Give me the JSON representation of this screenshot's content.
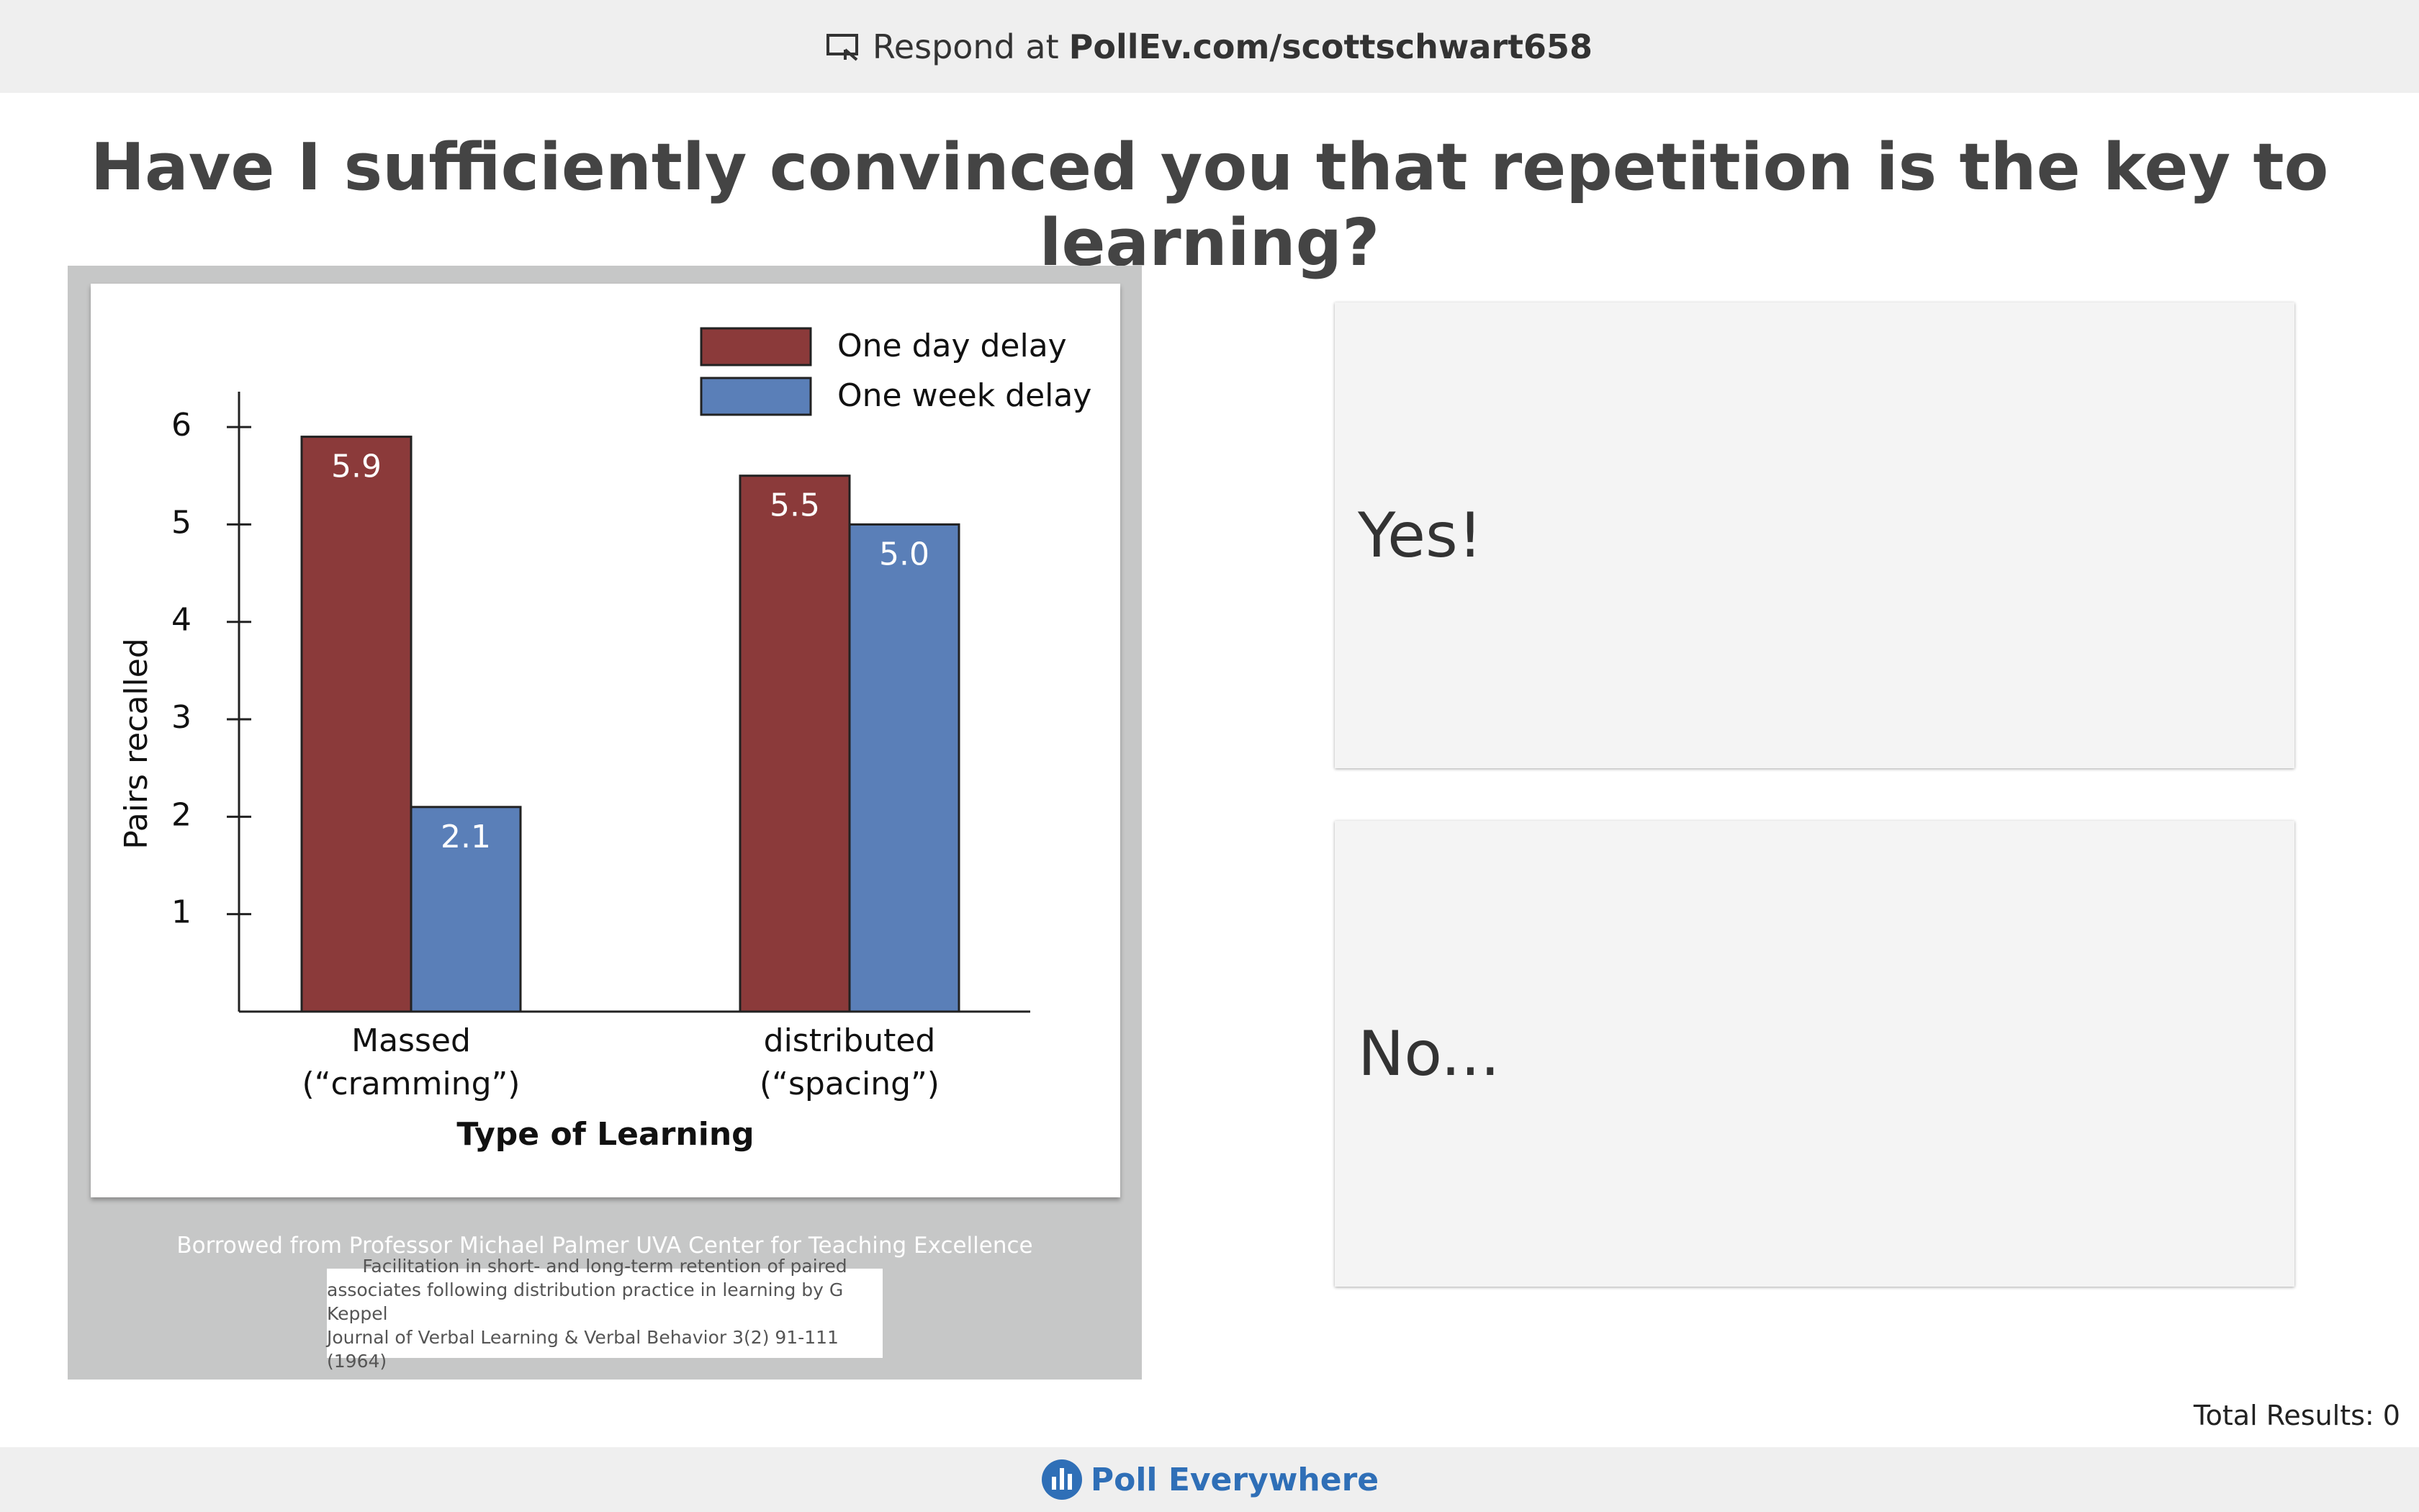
{
  "header": {
    "prefix": "Respond at",
    "url": "PollEv.com/scottschwart658"
  },
  "question": "Have I sufficiently convinced you that repetition is the key to learning?",
  "chart_data": {
    "type": "bar",
    "categories": [
      "Massed\n(“cramming”)",
      "distributed\n(“spacing”)"
    ],
    "series": [
      {
        "name": "One day delay",
        "color": "#8b3a3a",
        "values": [
          5.9,
          5.5
        ]
      },
      {
        "name": "One week delay",
        "color": "#5a7fb8",
        "values": [
          2.1,
          5.0
        ],
        "value_labels": [
          "2.1",
          "5.0"
        ]
      }
    ],
    "ylabel": "Pairs recalled",
    "xlabel": "Type of Learning",
    "ylim": [
      0,
      6.2
    ],
    "yticks": [
      1,
      2,
      3,
      4,
      5,
      6
    ],
    "legend": "upper right"
  },
  "credit": "Borrowed from Professor Michael Palmer UVA Center for Teaching Excellence",
  "citation": [
    "Facilitation in short- and long-term retention of paired",
    "associates following distribution practice in learning by G Keppel",
    "Journal of Verbal Learning & Verbal Behavior 3(2) 91-111 (1964)"
  ],
  "options": [
    "Yes!",
    "No..."
  ],
  "total": "Total Results: 0",
  "brand": "Poll Everywhere"
}
